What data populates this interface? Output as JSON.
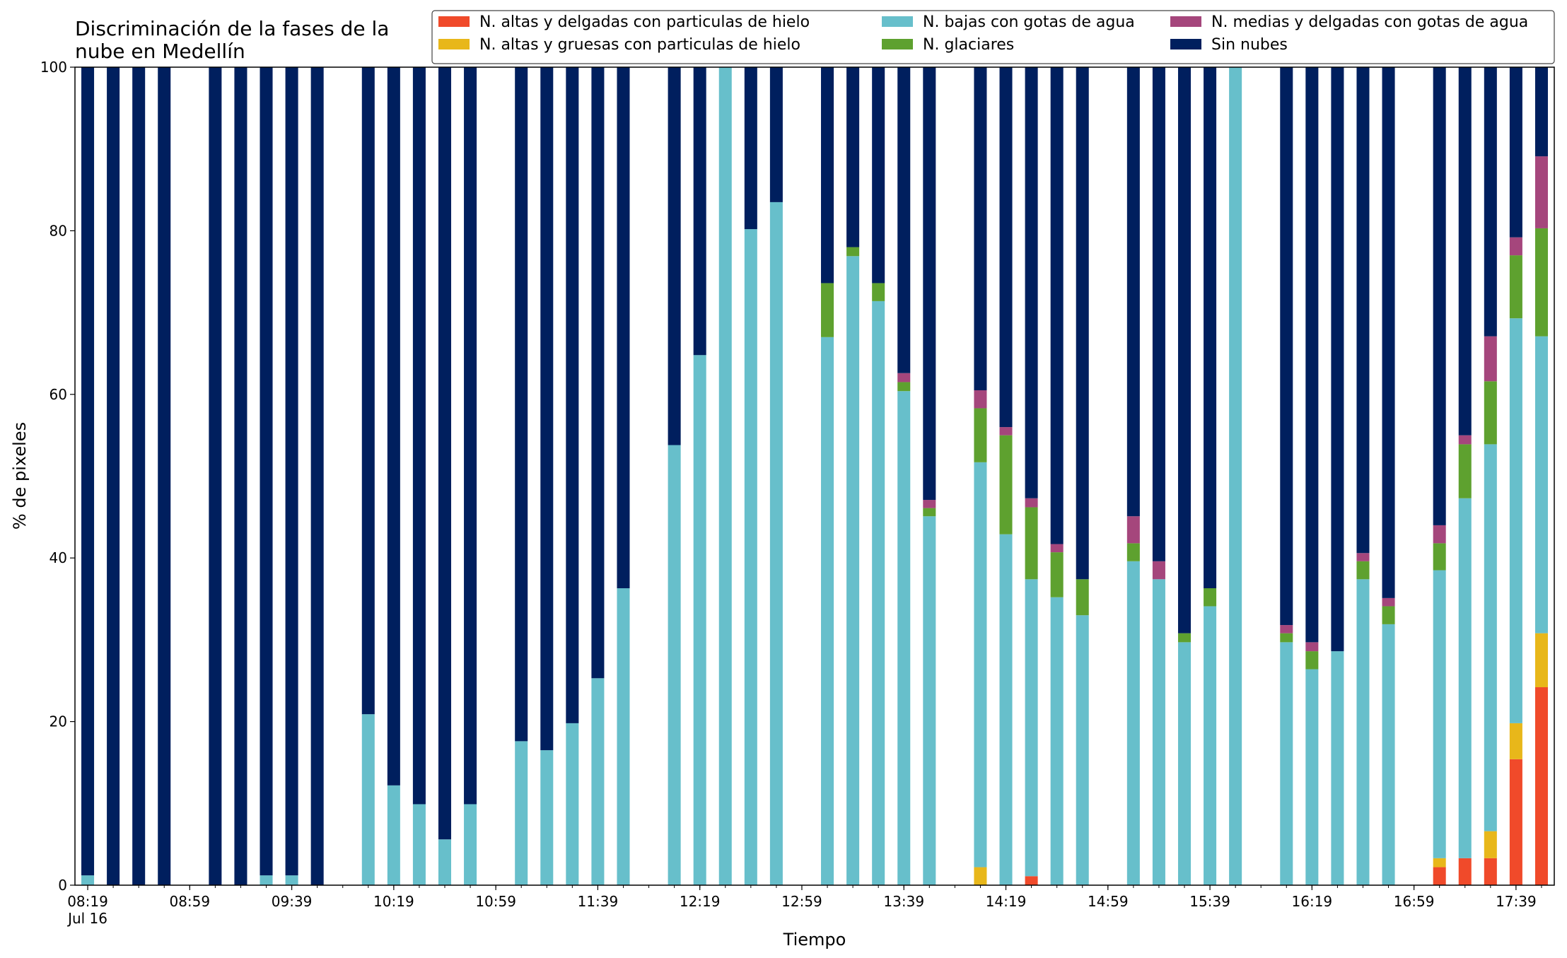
{
  "chart_data": {
    "type": "bar",
    "stacked": true,
    "title_lines": [
      "Discriminación de la fases de la",
      "nube en Medellín"
    ],
    "xlabel": "Tiempo",
    "ylabel": "% de pixeles",
    "ylim": [
      0,
      100
    ],
    "yticks": [
      0,
      20,
      40,
      60,
      80,
      100
    ],
    "x_start": "08:19",
    "x_end": "17:59",
    "x_step_minutes": 10,
    "xtick_labels": [
      "08:19",
      "08:59",
      "09:39",
      "10:19",
      "10:59",
      "11:39",
      "12:19",
      "12:59",
      "13:39",
      "14:19",
      "14:59",
      "15:39",
      "16:19",
      "16:59",
      "17:39"
    ],
    "xtick_date_label": "Jul 16",
    "grid": false,
    "legend_position": "top-right",
    "series": [
      {
        "key": "altas_delgadas",
        "name": "N. altas y delgadas con particulas de hielo",
        "color": "#f04a2a"
      },
      {
        "key": "altas_gruesas",
        "name": "N. altas y gruesas con particulas de hielo",
        "color": "#e8b71a"
      },
      {
        "key": "bajas",
        "name": "N. bajas con gotas de agua",
        "color": "#67bfcb"
      },
      {
        "key": "glaciares",
        "name": "N. glaciares",
        "color": "#5ea12f"
      },
      {
        "key": "medias",
        "name": "N. medias y delgadas con gotas de agua",
        "color": "#a5467c"
      },
      {
        "key": "sin",
        "name": "Sin nubes",
        "color": "#001f5e"
      }
    ],
    "bars": [
      {
        "time": "08:19",
        "altas_delgadas": 0,
        "altas_gruesas": 0,
        "bajas": 1.2,
        "glaciares": 0,
        "medias": 0,
        "sin": 98.8
      },
      {
        "time": "08:29",
        "altas_delgadas": 0,
        "altas_gruesas": 0,
        "bajas": 0,
        "glaciares": 0,
        "medias": 0,
        "sin": 100
      },
      {
        "time": "08:39",
        "altas_delgadas": 0,
        "altas_gruesas": 0,
        "bajas": 0,
        "glaciares": 0,
        "medias": 0,
        "sin": 100
      },
      {
        "time": "08:49",
        "altas_delgadas": 0,
        "altas_gruesas": 0,
        "bajas": 0,
        "glaciares": 0,
        "medias": 0,
        "sin": 100
      },
      {
        "time": "09:09",
        "altas_delgadas": 0,
        "altas_gruesas": 0,
        "bajas": 0,
        "glaciares": 0,
        "medias": 0,
        "sin": 100
      },
      {
        "time": "09:19",
        "altas_delgadas": 0,
        "altas_gruesas": 0,
        "bajas": 0,
        "glaciares": 0,
        "medias": 0,
        "sin": 100
      },
      {
        "time": "09:29",
        "altas_delgadas": 0,
        "altas_gruesas": 0,
        "bajas": 1.2,
        "glaciares": 0,
        "medias": 0,
        "sin": 98.8
      },
      {
        "time": "09:39",
        "altas_delgadas": 0,
        "altas_gruesas": 0,
        "bajas": 1.2,
        "glaciares": 0,
        "medias": 0,
        "sin": 98.8
      },
      {
        "time": "09:49",
        "altas_delgadas": 0,
        "altas_gruesas": 0,
        "bajas": 0,
        "glaciares": 0,
        "medias": 0,
        "sin": 100
      },
      {
        "time": "10:09",
        "altas_delgadas": 0,
        "altas_gruesas": 0,
        "bajas": 20.9,
        "glaciares": 0,
        "medias": 0,
        "sin": 79.1
      },
      {
        "time": "10:19",
        "altas_delgadas": 0,
        "altas_gruesas": 0,
        "bajas": 12.2,
        "glaciares": 0,
        "medias": 0,
        "sin": 87.8
      },
      {
        "time": "10:29",
        "altas_delgadas": 0,
        "altas_gruesas": 0,
        "bajas": 9.9,
        "glaciares": 0,
        "medias": 0,
        "sin": 90.1
      },
      {
        "time": "10:39",
        "altas_delgadas": 0,
        "altas_gruesas": 0,
        "bajas": 5.6,
        "glaciares": 0,
        "medias": 0,
        "sin": 94.4
      },
      {
        "time": "10:49",
        "altas_delgadas": 0,
        "altas_gruesas": 0,
        "bajas": 9.9,
        "glaciares": 0,
        "medias": 0,
        "sin": 90.1
      },
      {
        "time": "11:09",
        "altas_delgadas": 0,
        "altas_gruesas": 0,
        "bajas": 17.6,
        "glaciares": 0,
        "medias": 0,
        "sin": 82.4
      },
      {
        "time": "11:19",
        "altas_delgadas": 0,
        "altas_gruesas": 0,
        "bajas": 16.5,
        "glaciares": 0,
        "medias": 0,
        "sin": 83.5
      },
      {
        "time": "11:29",
        "altas_delgadas": 0,
        "altas_gruesas": 0,
        "bajas": 19.8,
        "glaciares": 0,
        "medias": 0,
        "sin": 80.2
      },
      {
        "time": "11:39",
        "altas_delgadas": 0,
        "altas_gruesas": 0,
        "bajas": 25.3,
        "glaciares": 0,
        "medias": 0,
        "sin": 74.7
      },
      {
        "time": "11:49",
        "altas_delgadas": 0,
        "altas_gruesas": 0,
        "bajas": 36.3,
        "glaciares": 0,
        "medias": 0,
        "sin": 63.7
      },
      {
        "time": "12:09",
        "altas_delgadas": 0,
        "altas_gruesas": 0,
        "bajas": 53.8,
        "glaciares": 0,
        "medias": 0,
        "sin": 46.2
      },
      {
        "time": "12:19",
        "altas_delgadas": 0,
        "altas_gruesas": 0,
        "bajas": 64.8,
        "glaciares": 0,
        "medias": 0,
        "sin": 35.2
      },
      {
        "time": "12:29",
        "altas_delgadas": 0,
        "altas_gruesas": 0,
        "bajas": 100,
        "glaciares": 0,
        "medias": 0,
        "sin": 0
      },
      {
        "time": "12:39",
        "altas_delgadas": 0,
        "altas_gruesas": 0,
        "bajas": 80.2,
        "glaciares": 0,
        "medias": 0,
        "sin": 19.8
      },
      {
        "time": "12:49",
        "altas_delgadas": 0,
        "altas_gruesas": 0,
        "bajas": 83.5,
        "glaciares": 0,
        "medias": 0,
        "sin": 16.5
      },
      {
        "time": "13:09",
        "altas_delgadas": 0,
        "altas_gruesas": 0,
        "bajas": 67.0,
        "glaciares": 6.6,
        "medias": 0,
        "sin": 26.4
      },
      {
        "time": "13:19",
        "altas_delgadas": 0,
        "altas_gruesas": 0,
        "bajas": 76.9,
        "glaciares": 1.1,
        "medias": 0,
        "sin": 22.0
      },
      {
        "time": "13:29",
        "altas_delgadas": 0,
        "altas_gruesas": 0,
        "bajas": 71.4,
        "glaciares": 2.2,
        "medias": 0,
        "sin": 26.4
      },
      {
        "time": "13:39",
        "altas_delgadas": 0,
        "altas_gruesas": 0,
        "bajas": 60.4,
        "glaciares": 1.1,
        "medias": 1.1,
        "sin": 37.4
      },
      {
        "time": "13:49",
        "altas_delgadas": 0,
        "altas_gruesas": 0,
        "bajas": 45.1,
        "glaciares": 1.0,
        "medias": 1.0,
        "sin": 52.9
      },
      {
        "time": "14:09",
        "altas_delgadas": 0,
        "altas_gruesas": 2.2,
        "bajas": 49.5,
        "glaciares": 6.6,
        "medias": 2.2,
        "sin": 39.5
      },
      {
        "time": "14:19",
        "altas_delgadas": 0,
        "altas_gruesas": 0,
        "bajas": 42.9,
        "glaciares": 12.1,
        "medias": 1.0,
        "sin": 44.0
      },
      {
        "time": "14:29",
        "altas_delgadas": 1.1,
        "altas_gruesas": 0,
        "bajas": 36.3,
        "glaciares": 8.8,
        "medias": 1.1,
        "sin": 52.7
      },
      {
        "time": "14:39",
        "altas_delgadas": 0,
        "altas_gruesas": 0,
        "bajas": 35.2,
        "glaciares": 5.5,
        "medias": 1.0,
        "sin": 58.3
      },
      {
        "time": "14:49",
        "altas_delgadas": 0,
        "altas_gruesas": 0,
        "bajas": 33.0,
        "glaciares": 4.4,
        "medias": 0,
        "sin": 62.6
      },
      {
        "time": "15:09",
        "altas_delgadas": 0,
        "altas_gruesas": 0,
        "bajas": 39.6,
        "glaciares": 2.2,
        "medias": 3.3,
        "sin": 54.9
      },
      {
        "time": "15:19",
        "altas_delgadas": 0,
        "altas_gruesas": 0,
        "bajas": 37.4,
        "glaciares": 0,
        "medias": 2.2,
        "sin": 60.4
      },
      {
        "time": "15:29",
        "altas_delgadas": 0,
        "altas_gruesas": 0,
        "bajas": 29.7,
        "glaciares": 1.1,
        "medias": 0,
        "sin": 69.2
      },
      {
        "time": "15:39",
        "altas_delgadas": 0,
        "altas_gruesas": 0,
        "bajas": 34.1,
        "glaciares": 2.2,
        "medias": 0,
        "sin": 63.7
      },
      {
        "time": "15:49",
        "altas_delgadas": 0,
        "altas_gruesas": 0,
        "bajas": 100,
        "glaciares": 0,
        "medias": 0,
        "sin": 0
      },
      {
        "time": "16:09",
        "altas_delgadas": 0,
        "altas_gruesas": 0,
        "bajas": 29.7,
        "glaciares": 1.1,
        "medias": 1.0,
        "sin": 68.2
      },
      {
        "time": "16:19",
        "altas_delgadas": 0,
        "altas_gruesas": 0,
        "bajas": 26.4,
        "glaciares": 2.2,
        "medias": 1.1,
        "sin": 70.3
      },
      {
        "time": "16:29",
        "altas_delgadas": 0,
        "altas_gruesas": 0,
        "bajas": 28.6,
        "glaciares": 0,
        "medias": 0,
        "sin": 71.4
      },
      {
        "time": "16:39",
        "altas_delgadas": 0,
        "altas_gruesas": 0,
        "bajas": 37.4,
        "glaciares": 2.2,
        "medias": 1.0,
        "sin": 59.4
      },
      {
        "time": "16:49",
        "altas_delgadas": 0,
        "altas_gruesas": 0,
        "bajas": 31.9,
        "glaciares": 2.2,
        "medias": 1.0,
        "sin": 64.9
      },
      {
        "time": "17:09",
        "altas_delgadas": 2.2,
        "altas_gruesas": 1.1,
        "bajas": 35.2,
        "glaciares": 3.3,
        "medias": 2.2,
        "sin": 56.0
      },
      {
        "time": "17:19",
        "altas_delgadas": 3.3,
        "altas_gruesas": 0,
        "bajas": 44.0,
        "glaciares": 6.6,
        "medias": 1.1,
        "sin": 45.0
      },
      {
        "time": "17:29",
        "altas_delgadas": 3.3,
        "altas_gruesas": 3.3,
        "bajas": 47.3,
        "glaciares": 7.7,
        "medias": 5.5,
        "sin": 32.9
      },
      {
        "time": "17:39",
        "altas_delgadas": 15.4,
        "altas_gruesas": 4.4,
        "bajas": 49.5,
        "glaciares": 7.7,
        "medias": 2.2,
        "sin": 20.8
      },
      {
        "time": "17:49",
        "altas_delgadas": 24.2,
        "altas_gruesas": 6.6,
        "bajas": 36.3,
        "glaciares": 13.2,
        "medias": 8.8,
        "sin": 10.9
      }
    ]
  }
}
